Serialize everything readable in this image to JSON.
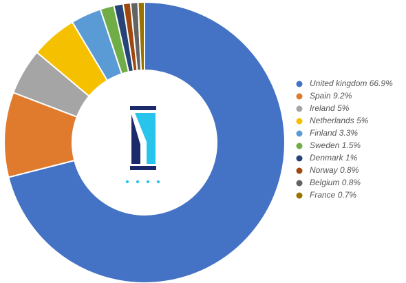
{
  "chart_data": {
    "type": "pie",
    "donut": true,
    "categories": [
      "United kingdom",
      "Spain",
      "Ireland",
      "Netherlands",
      "Finland",
      "Sweden",
      "Denmark",
      "Norway",
      "Belgium",
      "France"
    ],
    "values": [
      66.9,
      9.2,
      5,
      5,
      3.3,
      1.5,
      1,
      0.8,
      0.8,
      0.7
    ],
    "value_labels": [
      "66.9%",
      "9.2%",
      "5%",
      "5%",
      "3.3%",
      "1.5%",
      "1%",
      "0.8%",
      "0.8%",
      "0.7%"
    ],
    "colors": [
      "#4472c4",
      "#e07b2e",
      "#a5a5a5",
      "#f5c000",
      "#5b9bd5",
      "#70ad47",
      "#264478",
      "#9e480e",
      "#636363",
      "#997300"
    ],
    "legend": "right"
  }
}
